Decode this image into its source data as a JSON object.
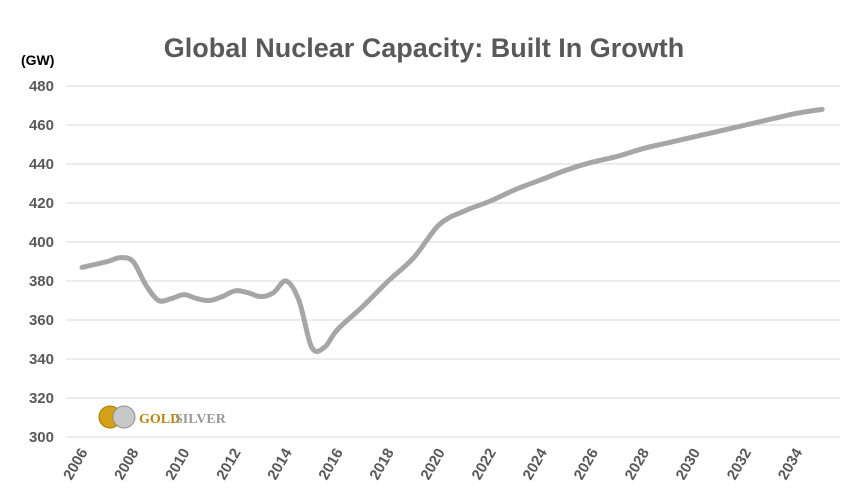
{
  "chart_data": {
    "type": "line",
    "title": "Global Nuclear Capacity: Built In Growth",
    "unit_label": "(GW)",
    "xlabel": "",
    "ylabel": "",
    "ylim": [
      300,
      480
    ],
    "yticks": [
      300,
      320,
      340,
      360,
      380,
      400,
      420,
      440,
      460,
      480
    ],
    "xlim": [
      2006,
      2035.5
    ],
    "xticks": [
      "2006",
      "2008",
      "2010",
      "2012",
      "2014",
      "2016",
      "2018",
      "2020",
      "2022",
      "2024",
      "2026",
      "2028",
      "2030",
      "2032",
      "2034"
    ],
    "grid": true,
    "line_color": "#a6a6a6",
    "series": [
      {
        "x": [
          2006,
          2007,
          2007.5,
          2008,
          2008.5,
          2009,
          2009.5,
          2010,
          2010.5,
          2011,
          2011.5,
          2012,
          2012.5,
          2013,
          2013.5,
          2014,
          2014.5,
          2015,
          2015.5,
          2016,
          2017,
          2018,
          2019,
          2020,
          2021,
          2022,
          2023,
          2024,
          2025,
          2026,
          2027,
          2028,
          2029,
          2030,
          2031,
          2032,
          2033,
          2034,
          2035
        ],
        "values": [
          387,
          390,
          392,
          390,
          378,
          370,
          371,
          373,
          371,
          370,
          372,
          375,
          374,
          372,
          374,
          380,
          370,
          346,
          346,
          355,
          367,
          380,
          392,
          409,
          416,
          421,
          427,
          432,
          437,
          441,
          444,
          448,
          451,
          454,
          457,
          460,
          463,
          466,
          468
        ]
      }
    ]
  },
  "logo": {
    "gold": "GOLD",
    "silver": "SILVER"
  }
}
